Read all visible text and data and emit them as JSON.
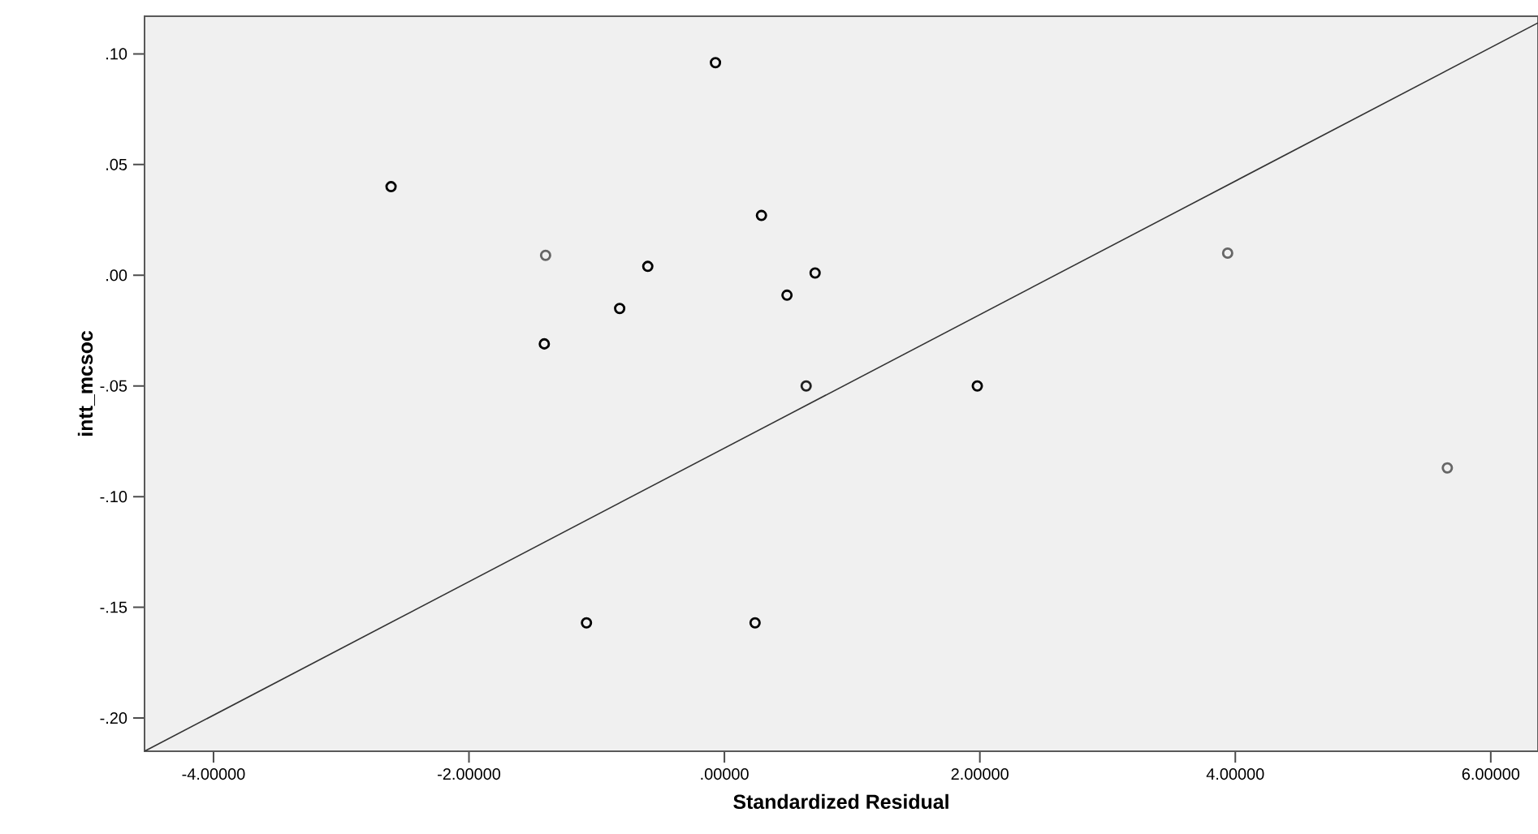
{
  "chart_data": {
    "type": "scatter",
    "xlabel": "Standardized Residual",
    "ylabel": "intt_mcsoc",
    "xlim": [
      -4.54,
      6.37
    ],
    "ylim": [
      -0.215,
      0.117
    ],
    "xticks": [
      {
        "value": -4,
        "label": "-4.00000"
      },
      {
        "value": -2,
        "label": "-2.00000"
      },
      {
        "value": 0,
        "label": ".00000"
      },
      {
        "value": 2,
        "label": "2.00000"
      },
      {
        "value": 4,
        "label": "4.00000"
      },
      {
        "value": 6,
        "label": "6.00000"
      }
    ],
    "yticks": [
      {
        "value": -0.2,
        "label": "-.20"
      },
      {
        "value": -0.15,
        "label": "-.15"
      },
      {
        "value": -0.1,
        "label": "-.10"
      },
      {
        "value": -0.05,
        "label": "-.05"
      },
      {
        "value": 0,
        "label": ".00"
      },
      {
        "value": 0.05,
        "label": ".05"
      },
      {
        "value": 0.1,
        "label": ".10"
      }
    ],
    "marker": "circle",
    "series": [
      {
        "x": [
          -2.61,
          -1.4,
          -0.6,
          0.29,
          0.71,
          0.49,
          -0.82,
          -1.41,
          0.64,
          1.98,
          3.94,
          5.66,
          -0.07,
          -1.08,
          0.24
        ],
        "values": [
          0.04,
          0.009,
          0.004,
          0.027,
          0.001,
          -0.009,
          -0.015,
          -0.031,
          -0.05,
          -0.05,
          0.01,
          -0.087,
          0.096,
          -0.157,
          -0.157
        ],
        "colors": [
          "#000000",
          "#666666",
          "#000000",
          "#000000",
          "#000000",
          "#000000",
          "#000000",
          "#000000",
          "#222222",
          "#000000",
          "#666666",
          "#666666",
          "#000000",
          "#000000",
          "#000000"
        ]
      },
      {
        "type": "line",
        "color": "#333333",
        "marker": "none",
        "x": [
          -4.54,
          6.37
        ],
        "values": [
          -0.215,
          0.114
        ]
      }
    ]
  }
}
